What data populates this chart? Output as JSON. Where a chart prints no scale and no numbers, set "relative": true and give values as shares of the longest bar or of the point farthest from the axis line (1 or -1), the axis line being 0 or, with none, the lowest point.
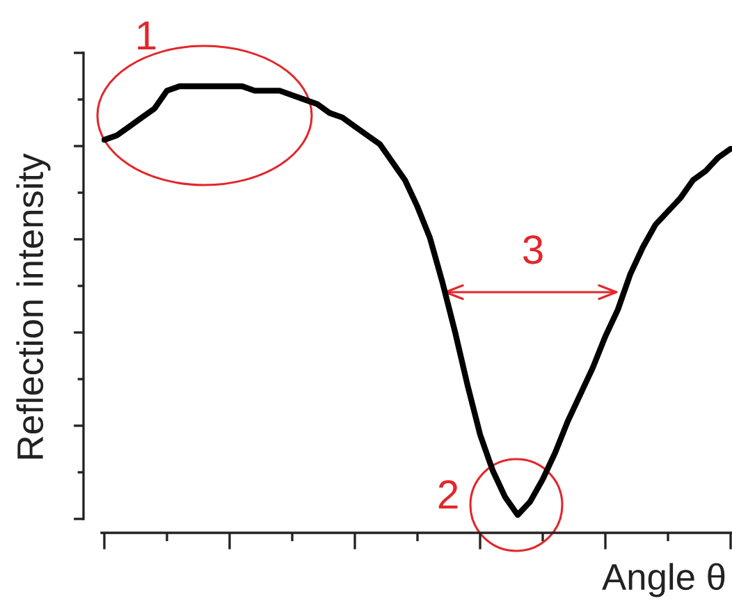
{
  "chart_data": {
    "type": "line",
    "xlabel": "Angle θ",
    "ylabel": "Reflection intensity",
    "relative": true,
    "categories": [
      null,
      null,
      null,
      null,
      null,
      null,
      null,
      null,
      null,
      null,
      null,
      null,
      null,
      null,
      null,
      null,
      null,
      null,
      null,
      null,
      null,
      null,
      null,
      null,
      null,
      null,
      null,
      null,
      null,
      null,
      null,
      null,
      null,
      null,
      null,
      null,
      null,
      null,
      null,
      null,
      null,
      null,
      null,
      null,
      null,
      null,
      null,
      null,
      null,
      null,
      null
    ],
    "series": [
      {
        "color": "#000000",
        "values": [
          0.88,
          0.89,
          0.91,
          0.93,
          0.95,
          0.99,
          1.0,
          1.0,
          1.0,
          1.0,
          1.0,
          1.0,
          0.99,
          0.99,
          0.99,
          0.98,
          0.97,
          0.96,
          0.94,
          0.93,
          0.91,
          0.89,
          0.87,
          0.83,
          0.79,
          0.73,
          0.66,
          0.56,
          0.45,
          0.33,
          0.22,
          0.14,
          0.08,
          0.04,
          0.07,
          0.12,
          0.18,
          0.25,
          0.31,
          0.37,
          0.44,
          0.5,
          0.58,
          0.64,
          0.69,
          0.72,
          0.75,
          0.79,
          0.81,
          0.84,
          0.86
        ]
      }
    ],
    "annotations": [
      "1",
      "2",
      "3"
    ]
  }
}
